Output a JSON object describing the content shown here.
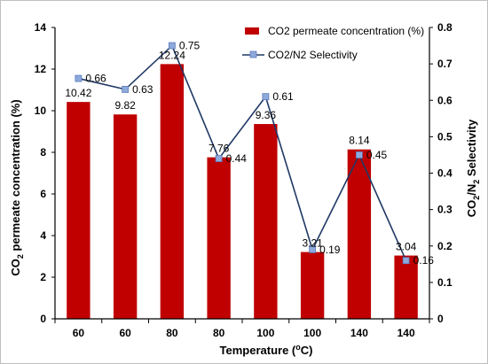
{
  "chart_data": {
    "type": "bar",
    "categories": [
      "60",
      "60",
      "80",
      "80",
      "100",
      "100",
      "140",
      "140"
    ],
    "series": [
      {
        "name": "CO2 permeate concentration (%)",
        "type": "bar",
        "axis": "left",
        "color": "#c00000",
        "values": [
          10.42,
          9.82,
          12.24,
          7.76,
          9.36,
          3.21,
          8.14,
          3.04
        ]
      },
      {
        "name": "CO2/N2 Selectivity",
        "type": "line",
        "axis": "right",
        "color": "#1f3864",
        "marker_color": "#8ea9db",
        "values": [
          0.66,
          0.63,
          0.75,
          0.44,
          0.61,
          0.19,
          0.45,
          0.16
        ]
      }
    ],
    "bar_labels": [
      "10.42",
      "9.82",
      "12.24",
      "7.76",
      "9.36",
      "3.21",
      "8.14",
      "3.04"
    ],
    "line_labels": [
      "0.66",
      "0.63",
      "0.75",
      "0.44",
      "0.61",
      "0.19",
      "0.45",
      "0.16"
    ],
    "xlabel": {
      "main": "Temperature (",
      "sup": "o",
      "tail": "C)"
    },
    "ylabel_left": {
      "pre": "CO",
      "sub": "2",
      "post": " permeate concentration (%)"
    },
    "ylabel_right": {
      "pre": "CO",
      "sub1": "2",
      "mid": "/N",
      "sub2": "2",
      "post": " Selectivity"
    },
    "ylim_left": [
      0,
      14
    ],
    "yticks_left": [
      0,
      2,
      4,
      6,
      8,
      10,
      12,
      14
    ],
    "ylim_right": [
      0,
      0.8
    ],
    "yticks_right": [
      "0",
      "0.1",
      "0.2",
      "0.3",
      "0.4",
      "0.5",
      "0.6",
      "0.7",
      "0.8"
    ],
    "legend": {
      "position": "top-right",
      "entries": [
        "CO2 permeate concentration (%)",
        "CO2/N2 Selectivity"
      ]
    },
    "grid": false
  }
}
